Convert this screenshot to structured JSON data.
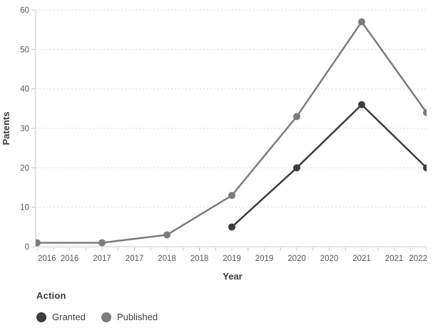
{
  "colors": {
    "granted": "#3d3d3d",
    "published": "#7c7c7c",
    "gridline": "#d8d8d8",
    "axis_line": "#c8c8c8",
    "tick_text": "#565656",
    "axis_title_text": "#3a3a3a"
  },
  "chart_data": {
    "type": "line",
    "title": "",
    "xlabel": "Year",
    "ylabel": "Patents",
    "x_range": [
      2016,
      2022
    ],
    "ylim": [
      0,
      60
    ],
    "y_ticks": [
      0,
      10,
      20,
      30,
      40,
      50,
      60
    ],
    "grid": "horizontal-dotted",
    "x_minor_tick_step_years": 0.25,
    "x_tick_labels": [
      {
        "pos": 2016.0,
        "label": "2016"
      },
      {
        "pos": 2016.5,
        "label": "2016"
      },
      {
        "pos": 2017.0,
        "label": "2017"
      },
      {
        "pos": 2017.5,
        "label": "2017"
      },
      {
        "pos": 2018.0,
        "label": "2018"
      },
      {
        "pos": 2018.5,
        "label": "2018"
      },
      {
        "pos": 2019.0,
        "label": "2019"
      },
      {
        "pos": 2019.5,
        "label": "2019"
      },
      {
        "pos": 2020.0,
        "label": "2020"
      },
      {
        "pos": 2020.5,
        "label": "2020"
      },
      {
        "pos": 2021.0,
        "label": "2021"
      },
      {
        "pos": 2021.5,
        "label": "2021"
      },
      {
        "pos": 2022.0,
        "label": "2022"
      }
    ],
    "series": [
      {
        "name": "Granted",
        "color": "#3d3d3d",
        "points": [
          {
            "x": 2019,
            "y": 5
          },
          {
            "x": 2020,
            "y": 20
          },
          {
            "x": 2021,
            "y": 36
          },
          {
            "x": 2022,
            "y": 20
          }
        ]
      },
      {
        "name": "Published",
        "color": "#7c7c7c",
        "points": [
          {
            "x": 2016,
            "y": 1
          },
          {
            "x": 2017,
            "y": 1
          },
          {
            "x": 2018,
            "y": 3
          },
          {
            "x": 2019,
            "y": 13
          },
          {
            "x": 2020,
            "y": 33
          },
          {
            "x": 2021,
            "y": 57
          },
          {
            "x": 2022,
            "y": 34
          }
        ]
      }
    ],
    "legend": {
      "title": "Action",
      "position": "bottom-left",
      "entries": [
        {
          "label": "Granted",
          "color": "#3d3d3d"
        },
        {
          "label": "Published",
          "color": "#7c7c7c"
        }
      ]
    }
  }
}
